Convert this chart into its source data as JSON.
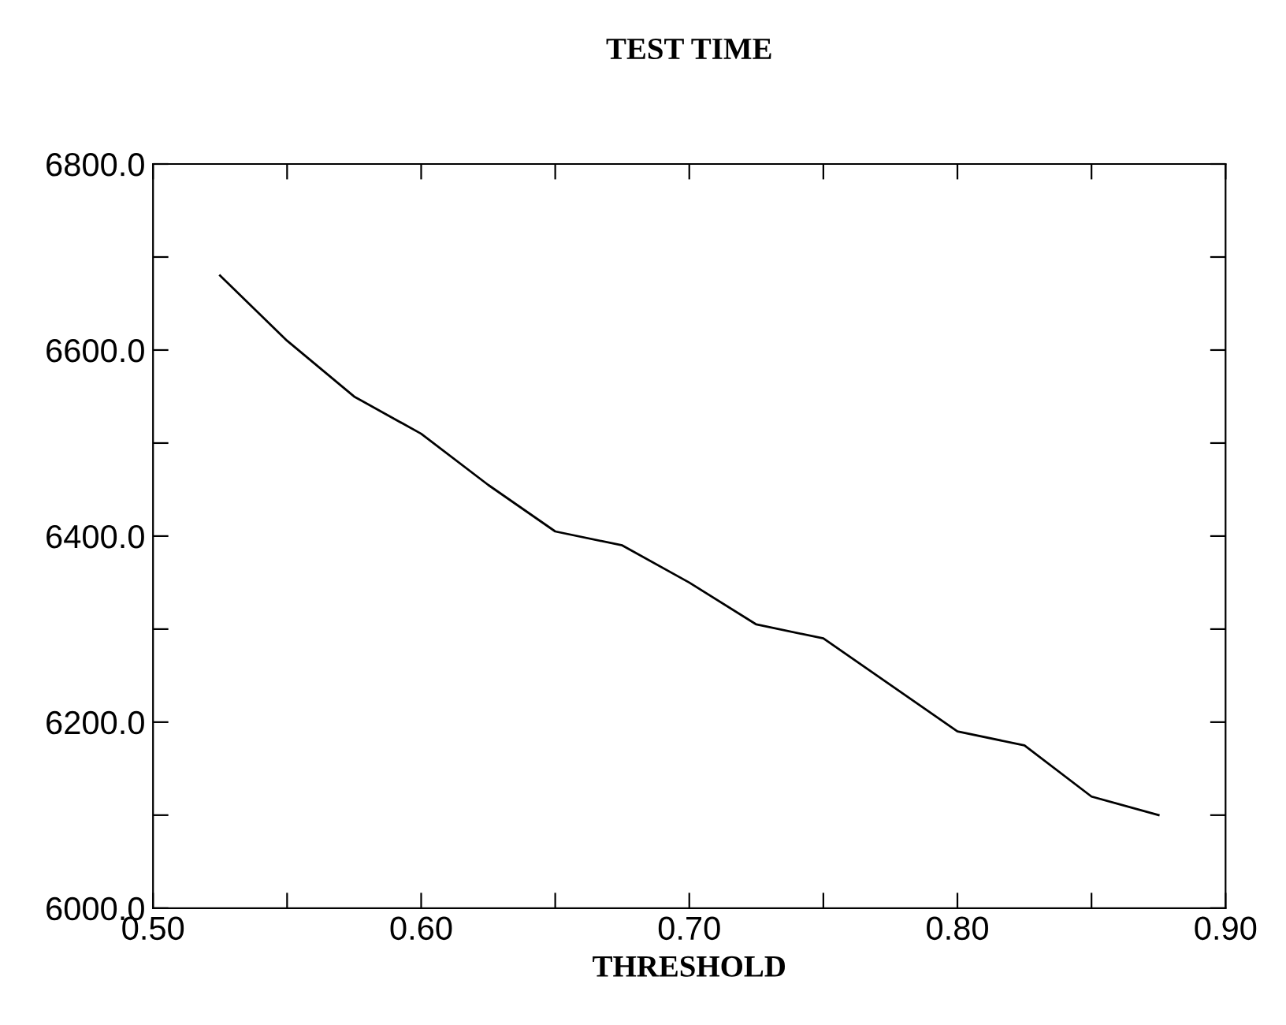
{
  "chart_data": {
    "type": "line",
    "title": "TEST TIME",
    "xlabel": "THRESHOLD",
    "x": [
      0.525,
      0.55,
      0.575,
      0.6,
      0.625,
      0.65,
      0.675,
      0.7,
      0.725,
      0.75,
      0.775,
      0.8,
      0.825,
      0.85,
      0.875
    ],
    "series": [
      {
        "color": "#000000",
        "values": [
          6680,
          6610,
          6550,
          6510,
          6455,
          6405,
          6390,
          6350,
          6305,
          6290,
          6240,
          6190,
          6175,
          6120,
          6100
        ]
      }
    ],
    "xlim": [
      0.5,
      0.9
    ],
    "ylim": [
      6000,
      6800
    ],
    "xticks": [
      {
        "value": 0.5,
        "label": "0.50"
      },
      {
        "value": 0.55,
        "label": null
      },
      {
        "value": 0.6,
        "label": "0.60"
      },
      {
        "value": 0.65,
        "label": null
      },
      {
        "value": 0.7,
        "label": "0.70"
      },
      {
        "value": 0.75,
        "label": null
      },
      {
        "value": 0.8,
        "label": "0.80"
      },
      {
        "value": 0.85,
        "label": null
      },
      {
        "value": 0.9,
        "label": "0.90"
      }
    ],
    "yticks": [
      {
        "value": 6000,
        "label": "6000.0"
      },
      {
        "value": 6100,
        "label": null
      },
      {
        "value": 6200,
        "label": "6200.0"
      },
      {
        "value": 6300,
        "label": null
      },
      {
        "value": 6400,
        "label": "6400.0"
      },
      {
        "value": 6500,
        "label": null
      },
      {
        "value": 6600,
        "label": "6600.0"
      },
      {
        "value": 6700,
        "label": null
      },
      {
        "value": 6800,
        "label": "6800.0"
      }
    ],
    "grid": false,
    "marker": "none",
    "line_style": "solid"
  }
}
